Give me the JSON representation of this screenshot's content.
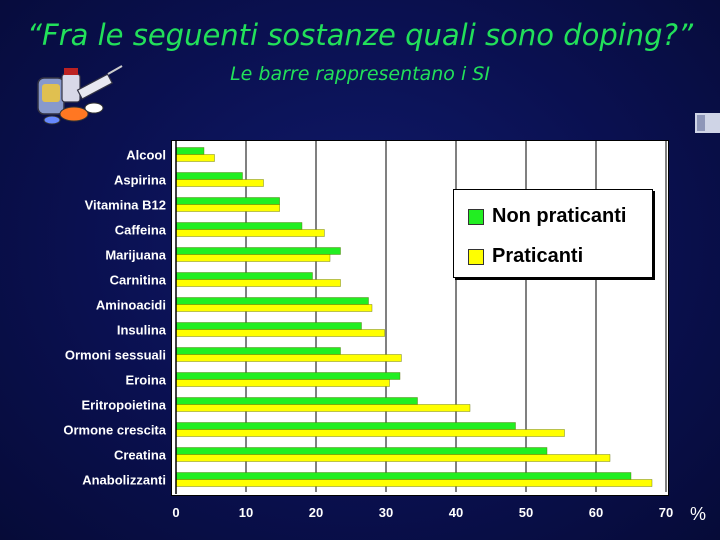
{
  "slide": {
    "title": "“Fra le seguenti sostanze quali sono doping?”",
    "subtitle": "Le barre rappresentano i SI",
    "unit": "%"
  },
  "colors": {
    "non_praticanti": "#22ee22",
    "praticanti": "#ffff00",
    "title": "#22e05a"
  },
  "chart_data": {
    "type": "bar",
    "orientation": "horizontal",
    "categories": [
      "Alcool",
      "Aspirina",
      "Vitamina B12",
      "Caffeina",
      "Marijuana",
      "Carnitina",
      "Aminoacidi",
      "Insulina",
      "Ormoni sessuali",
      "Eroina",
      "Eritropoietina",
      "Ormone crescita",
      "Creatina",
      "Anabolizzanti"
    ],
    "series": [
      {
        "name": "Non praticanti",
        "values": [
          4,
          9.5,
          14.8,
          18,
          23.5,
          19.5,
          27.5,
          26.5,
          23.5,
          32,
          34.5,
          48.5,
          53,
          65
        ]
      },
      {
        "name": "Praticanti",
        "values": [
          5.5,
          12.5,
          14.8,
          21.2,
          22,
          23.5,
          28,
          29.8,
          32.2,
          30.5,
          42,
          55.5,
          62,
          68
        ]
      }
    ],
    "xlim": [
      0,
      70
    ],
    "xticks": [
      0,
      10,
      20,
      30,
      40,
      50,
      60,
      70
    ],
    "unit": "%",
    "grid": true,
    "legend_position": "top-right"
  }
}
